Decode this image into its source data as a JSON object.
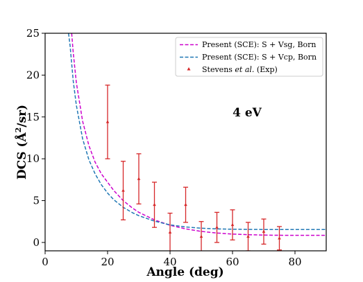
{
  "chart_data": {
    "type": "line",
    "xlabel": "Angle (deg)",
    "ylabel_main": "DCS (Å",
    "ylabel_sup": "2",
    "ylabel_tail": "/sr)",
    "xlim": [
      0,
      90
    ],
    "ylim": [
      -1,
      25
    ],
    "xticks": [
      0,
      20,
      40,
      60,
      80
    ],
    "yticks": [
      0,
      5,
      10,
      15,
      20,
      25
    ],
    "grid": false,
    "legend_position": "top-right",
    "annotation": "4 eV",
    "series": [
      {
        "name": "Present (SCE): S + Vsg, Born",
        "style": "dashed",
        "color": "#cc00cc",
        "x": [
          8.5,
          9,
          10,
          12,
          14,
          16,
          18,
          20,
          22,
          25,
          28,
          30,
          35,
          40,
          45,
          50,
          55,
          60,
          65,
          70,
          75,
          80,
          85,
          90
        ],
        "y": [
          25,
          22.7,
          19.1,
          14.5,
          11.6,
          9.6,
          8.2,
          7.2,
          6.2,
          5.0,
          4.1,
          3.6,
          2.7,
          2.05,
          1.62,
          1.32,
          1.13,
          1.0,
          0.93,
          0.88,
          0.86,
          0.85,
          0.85,
          0.85
        ]
      },
      {
        "name": "Present (SCE): S + Vcp, Born",
        "style": "dashed",
        "color": "#1f77b4",
        "x": [
          7.5,
          8,
          9,
          10,
          12,
          14,
          16,
          18,
          20,
          22,
          25,
          28,
          30,
          35,
          40,
          45,
          50,
          55,
          60,
          65,
          70,
          75,
          80,
          85,
          90
        ],
        "y": [
          25,
          23.5,
          19.3,
          16.4,
          12.4,
          9.9,
          8.2,
          6.9,
          5.9,
          5.1,
          4.2,
          3.55,
          3.2,
          2.55,
          2.1,
          1.85,
          1.7,
          1.62,
          1.58,
          1.56,
          1.55,
          1.55,
          1.55,
          1.55,
          1.55
        ]
      },
      {
        "name_prefix": "Stevens ",
        "name_italic": "et al.",
        "name_suffix": " (Exp)",
        "style": "errorbar",
        "marker": "triangle",
        "color": "#d62728",
        "x": [
          20,
          25,
          30,
          35,
          40,
          45,
          50,
          55,
          60,
          65,
          70,
          75
        ],
        "y": [
          14.4,
          6.2,
          7.6,
          4.5,
          1.2,
          4.5,
          0.7,
          1.8,
          2.1,
          0.7,
          1.3,
          0.5
        ],
        "err": [
          4.4,
          3.5,
          3.0,
          2.7,
          2.3,
          2.1,
          1.8,
          1.8,
          1.8,
          1.7,
          1.5,
          1.4
        ]
      }
    ]
  }
}
